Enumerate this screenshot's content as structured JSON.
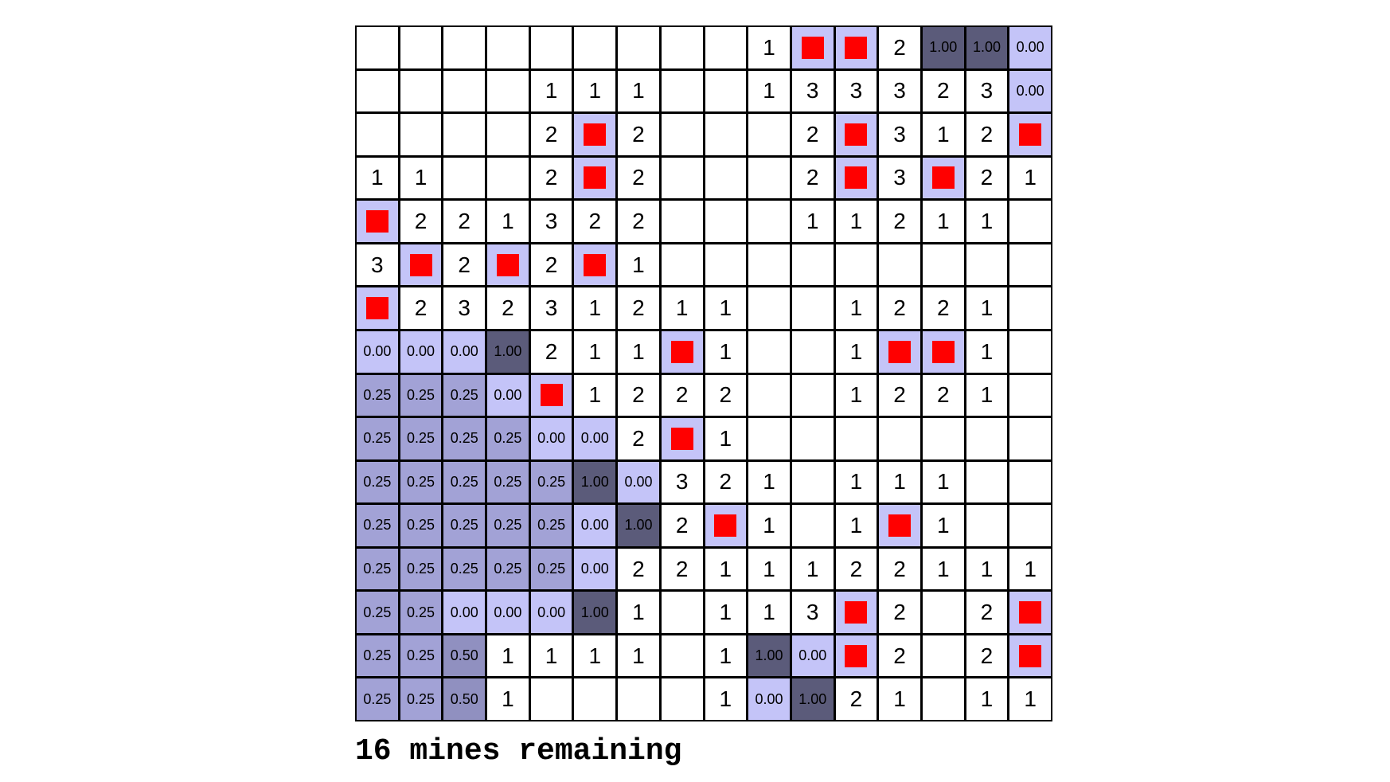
{
  "status_text": "16 mines remaining",
  "colors": {
    "revealed": "#ffffff",
    "flag_bg": "#c4c4f8",
    "mine": "#ff0000",
    "prob_0": "#c4c4f8",
    "prob_025": "#a2a2d6",
    "prob_050": "#9090c0",
    "prob_100": "#5b5b7a",
    "grid_line": "#000000"
  },
  "grid": [
    [
      "",
      "",
      "",
      "",
      "",
      "",
      "",
      "",
      "",
      "1",
      "F",
      "F",
      "2",
      "1.00",
      "1.00",
      "0.00"
    ],
    [
      "",
      "",
      "",
      "",
      "1",
      "1",
      "1",
      "",
      "",
      "1",
      "3",
      "3",
      "3",
      "2",
      "3",
      "0.00"
    ],
    [
      "",
      "",
      "",
      "",
      "2",
      "F",
      "2",
      "",
      "",
      "",
      "2",
      "F",
      "3",
      "1",
      "2",
      "F"
    ],
    [
      "1",
      "1",
      "",
      "",
      "2",
      "F",
      "2",
      "",
      "",
      "",
      "2",
      "F",
      "3",
      "F",
      "2",
      "1"
    ],
    [
      "F",
      "2",
      "2",
      "1",
      "3",
      "2",
      "2",
      "",
      "",
      "",
      "1",
      "1",
      "2",
      "1",
      "1",
      ""
    ],
    [
      "3",
      "F",
      "2",
      "F",
      "2",
      "F",
      "1",
      "",
      "",
      "",
      "",
      "",
      "",
      "",
      "",
      ""
    ],
    [
      "F",
      "2",
      "3",
      "2",
      "3",
      "1",
      "2",
      "1",
      "1",
      "",
      "",
      "1",
      "2",
      "2",
      "1",
      ""
    ],
    [
      "0.00",
      "0.00",
      "0.00",
      "1.00",
      "2",
      "1",
      "1",
      "F",
      "1",
      "",
      "",
      "1",
      "F",
      "F",
      "1",
      ""
    ],
    [
      "0.25",
      "0.25",
      "0.25",
      "0.00",
      "F",
      "1",
      "2",
      "2",
      "2",
      "",
      "",
      "1",
      "2",
      "2",
      "1",
      ""
    ],
    [
      "0.25",
      "0.25",
      "0.25",
      "0.25",
      "0.00",
      "0.00",
      "2",
      "F",
      "1",
      "",
      "",
      "",
      "",
      "",
      "",
      ""
    ],
    [
      "0.25",
      "0.25",
      "0.25",
      "0.25",
      "0.25",
      "1.00",
      "0.00",
      "3",
      "2",
      "1",
      "",
      "1",
      "1",
      "1",
      "",
      ""
    ],
    [
      "0.25",
      "0.25",
      "0.25",
      "0.25",
      "0.25",
      "0.00",
      "1.00",
      "2",
      "F",
      "1",
      "",
      "1",
      "F",
      "1",
      "",
      ""
    ],
    [
      "0.25",
      "0.25",
      "0.25",
      "0.25",
      "0.25",
      "0.00",
      "2",
      "2",
      "1",
      "1",
      "1",
      "2",
      "2",
      "1",
      "1",
      "1"
    ],
    [
      "0.25",
      "0.25",
      "0.00",
      "0.00",
      "0.00",
      "1.00",
      "1",
      "",
      "1",
      "1",
      "3",
      "F",
      "2",
      "",
      "2",
      "F"
    ],
    [
      "0.25",
      "0.25",
      "0.50",
      "1",
      "1",
      "1",
      "1",
      "",
      "1",
      "1.00",
      "0.00",
      "F",
      "2",
      "",
      "2",
      "F"
    ],
    [
      "0.25",
      "0.25",
      "0.50",
      "1",
      "",
      "",
      "",
      "",
      "1",
      "0.00",
      "1.00",
      "2",
      "1",
      "",
      "1",
      "1"
    ]
  ]
}
